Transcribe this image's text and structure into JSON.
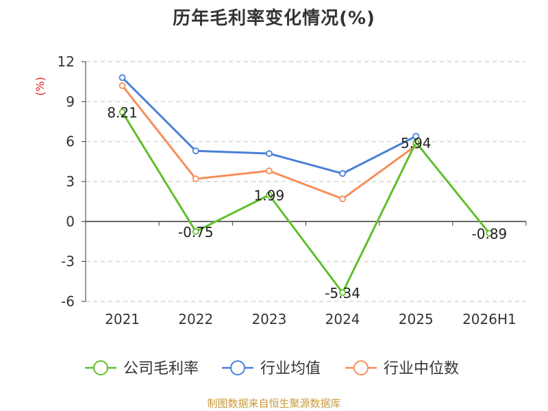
{
  "chart_data": {
    "type": "line",
    "title": "历年毛利率变化情况(%)",
    "ylabel": "(%)",
    "categories": [
      "2021",
      "2022",
      "2023",
      "2024",
      "2025",
      "2026H1"
    ],
    "ylim": [
      -6,
      12
    ],
    "yticks": [
      "12",
      "9",
      "6",
      "3",
      "0",
      "-3",
      "-6"
    ],
    "ytick_values": [
      12,
      9,
      6,
      3,
      0,
      -3,
      -6
    ],
    "grid": true,
    "legend_position": "bottom",
    "series": [
      {
        "name": "公司毛利率",
        "color": "#5fbf2a",
        "values": [
          8.21,
          -0.75,
          1.99,
          -5.34,
          5.94,
          -0.89
        ],
        "labels": [
          "8.21",
          "-0.75",
          "1.99",
          "-5.34",
          "5.94",
          "-0.89"
        ]
      },
      {
        "name": "行业均值",
        "color": "#4a7fd8",
        "values": [
          10.8,
          5.3,
          5.1,
          3.6,
          6.4,
          null
        ]
      },
      {
        "name": "行业中位数",
        "color": "#f58d5a",
        "values": [
          10.2,
          3.2,
          3.8,
          1.7,
          5.7,
          null
        ]
      }
    ]
  },
  "source_note": "制图数据来自恒生聚源数据库"
}
